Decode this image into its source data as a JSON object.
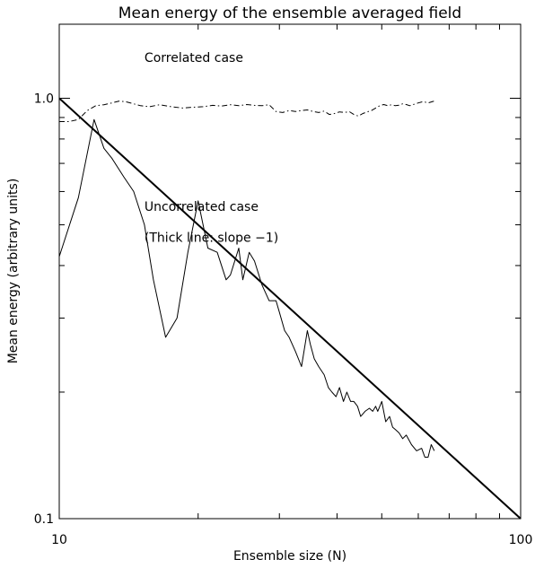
{
  "chart_data": {
    "type": "line",
    "title": "Mean energy of the ensemble averaged field",
    "xlabel": "Ensemble size (N)",
    "ylabel": "Mean energy (arbitrary units)",
    "xscale": "log",
    "yscale": "log",
    "xlim": [
      10,
      100
    ],
    "ylim": [
      0.1,
      1.5
    ],
    "x_tick_labels": [
      {
        "value": 10,
        "label": "10"
      },
      {
        "value": 100,
        "label": "100"
      }
    ],
    "y_tick_labels": [
      {
        "value": 0.1,
        "label": "0.1"
      },
      {
        "value": 1.0,
        "label": "1.0"
      }
    ],
    "x_minor_ticks": [
      20,
      30,
      40,
      50,
      60,
      70,
      80,
      90
    ],
    "y_minor_ticks": [
      0.2,
      0.3,
      0.4,
      0.5,
      0.6,
      0.7,
      0.8,
      0.9
    ],
    "annotations": [
      {
        "text": "Correlated case",
        "x": 15.3,
        "y": 1.22
      },
      {
        "text": "Uncorrelated case",
        "x": 15.3,
        "y": 0.54
      },
      {
        "text": "(Thick line: slope −1)",
        "x": 15.3,
        "y": 0.455
      }
    ],
    "series": [
      {
        "id": "correlated",
        "style": "dash-dot",
        "x": [
          10.0,
          10.5,
          11.0,
          11.5,
          12.0,
          12.5,
          13.0,
          13.5,
          14.0,
          14.5,
          15.0,
          15.7,
          16.5,
          17.5,
          18.5,
          19.5,
          20.5,
          21.5,
          22.5,
          23.5,
          24.5,
          25.5,
          26.5,
          27.5,
          28.5,
          29.5,
          30.5,
          31.5,
          32.5,
          33.5,
          34.5,
          35.5,
          36.5,
          37.5,
          38.5,
          39.5,
          40.5,
          41.5,
          42.5,
          43.5,
          44.5,
          45.5,
          46.5,
          47.5,
          48.5,
          49.5,
          50.5,
          51.5,
          52.5,
          53.5,
          54.5,
          55.5,
          56.5,
          57.5,
          58.5,
          60.0,
          61.5,
          63.0,
          65.0
        ],
        "y": [
          0.88,
          0.88,
          0.89,
          0.935,
          0.96,
          0.965,
          0.975,
          0.985,
          0.98,
          0.97,
          0.96,
          0.955,
          0.965,
          0.955,
          0.948,
          0.952,
          0.955,
          0.962,
          0.958,
          0.965,
          0.96,
          0.966,
          0.962,
          0.96,
          0.965,
          0.93,
          0.925,
          0.935,
          0.93,
          0.935,
          0.938,
          0.93,
          0.925,
          0.932,
          0.915,
          0.92,
          0.928,
          0.925,
          0.93,
          0.915,
          0.907,
          0.92,
          0.928,
          0.935,
          0.948,
          0.96,
          0.966,
          0.96,
          0.965,
          0.96,
          0.963,
          0.97,
          0.966,
          0.96,
          0.966,
          0.975,
          0.982,
          0.975,
          0.985
        ]
      },
      {
        "id": "uncorrelated",
        "style": "thin-solid",
        "x": [
          10.0,
          11.0,
          11.9,
          12.5,
          13.0,
          13.8,
          14.5,
          15.3,
          16.0,
          17.0,
          18.0,
          19.0,
          20.0,
          21.0,
          22.0,
          23.0,
          23.5,
          24.5,
          25.0,
          25.8,
          26.5,
          27.5,
          28.5,
          29.5,
          30.0,
          30.8,
          31.5,
          32.5,
          33.5,
          34.5,
          35.0,
          35.7,
          36.5,
          37.5,
          38.3,
          39.0,
          39.8,
          40.5,
          41.3,
          42.0,
          42.8,
          43.5,
          44.3,
          45.0,
          46.0,
          47.0,
          47.8,
          48.5,
          49.0,
          50.0,
          51.0,
          52.0,
          52.8,
          53.5,
          54.5,
          55.5,
          56.5,
          58.0,
          59.5,
          61.0,
          62.0,
          63.0,
          64.0,
          65.0
        ],
        "y": [
          0.42,
          0.58,
          0.89,
          0.76,
          0.72,
          0.65,
          0.6,
          0.5,
          0.37,
          0.27,
          0.3,
          0.43,
          0.57,
          0.44,
          0.43,
          0.37,
          0.38,
          0.44,
          0.37,
          0.43,
          0.41,
          0.36,
          0.33,
          0.33,
          0.31,
          0.28,
          0.27,
          0.25,
          0.23,
          0.28,
          0.26,
          0.24,
          0.23,
          0.22,
          0.205,
          0.2,
          0.195,
          0.205,
          0.19,
          0.2,
          0.19,
          0.19,
          0.185,
          0.175,
          0.18,
          0.183,
          0.18,
          0.185,
          0.18,
          0.19,
          0.17,
          0.175,
          0.165,
          0.163,
          0.16,
          0.155,
          0.158,
          0.15,
          0.145,
          0.147,
          0.14,
          0.14,
          0.15,
          0.145
        ]
      },
      {
        "id": "slope-minus-one",
        "style": "thick-solid",
        "x": [
          10,
          100
        ],
        "y": [
          1.0,
          0.1
        ]
      }
    ],
    "grid": false,
    "legend": "none"
  }
}
